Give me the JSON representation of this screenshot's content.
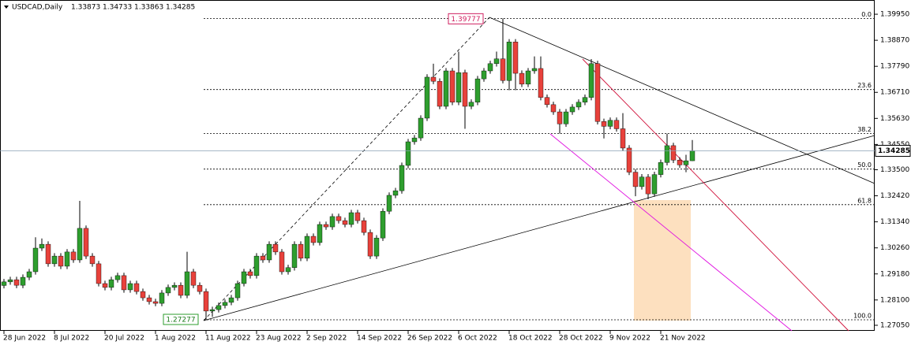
{
  "chart_data": {
    "type": "candlestick",
    "title": "USDCAD,Daily",
    "categories": [
      "28 Jun 2022",
      null,
      null,
      null,
      null,
      null,
      null,
      null,
      "8 Jul 2022",
      null,
      null,
      null,
      null,
      null,
      null,
      null,
      "20 Jul 2022",
      null,
      null,
      null,
      null,
      null,
      null,
      null,
      "1 Aug 2022",
      null,
      null,
      null,
      null,
      null,
      null,
      null,
      "11 Aug 2022",
      null,
      null,
      null,
      null,
      null,
      null,
      null,
      "23 Aug 2022",
      null,
      null,
      null,
      null,
      null,
      null,
      null,
      "2 Sep 2022",
      null,
      null,
      null,
      null,
      null,
      null,
      null,
      "14 Sep 2022",
      null,
      null,
      null,
      null,
      null,
      null,
      null,
      "26 Sep 2022",
      null,
      null,
      null,
      null,
      null,
      null,
      null,
      "6 Oct 2022",
      null,
      null,
      null,
      null,
      null,
      null,
      null,
      "18 Oct 2022",
      null,
      null,
      null,
      null,
      null,
      null,
      null,
      "28 Oct 2022",
      null,
      null,
      null,
      null,
      null,
      null,
      null,
      "9 Nov 2022",
      null,
      null,
      null,
      null,
      null,
      null,
      null,
      "21 Nov 2022",
      null,
      null,
      null,
      null,
      null
    ],
    "open": [
      1.287,
      1.2885,
      1.2894,
      1.2871,
      1.2904,
      1.2927,
      1.3025,
      1.3041,
      1.296,
      1.2992,
      1.295,
      1.3009,
      1.2976,
      1.3107,
      1.2992,
      1.296,
      1.2878,
      1.2862,
      1.2894,
      1.2911,
      1.2852,
      1.2878,
      1.2845,
      1.2819,
      1.2803,
      1.2796,
      1.2839,
      1.2862,
      1.2871,
      1.2829,
      1.2927,
      1.2871,
      1.2845,
      1.2764,
      1.277,
      1.2787,
      1.28,
      1.2819,
      1.2878,
      1.2927,
      1.2911,
      1.2992,
      1.2976,
      1.3041,
      1.3009,
      1.2927,
      1.2944,
      1.3041,
      1.2983,
      1.3074,
      1.3048,
      1.3123,
      1.3113,
      1.3156,
      1.3139,
      1.3123,
      1.3172,
      1.3139,
      1.309,
      1.2992,
      1.3067,
      1.3178,
      1.3244,
      1.3263,
      1.3368,
      1.3466,
      1.3482,
      1.3564,
      1.3734,
      1.3717,
      1.3613,
      1.376,
      1.363,
      1.3753,
      1.3613,
      1.363,
      1.3727,
      1.376,
      1.379,
      1.381,
      1.372,
      1.388,
      1.375,
      1.3705,
      1.376,
      1.377,
      1.365,
      1.362,
      1.359,
      1.354,
      1.359,
      1.361,
      1.363,
      1.365,
      1.379,
      1.355,
      1.353,
      1.3555,
      1.352,
      1.344,
      1.334,
      1.328,
      1.332,
      1.325,
      1.333,
      1.338,
      1.345,
      1.339,
      1.337,
      1.33873
    ],
    "high": [
      1.2897,
      1.2906,
      1.2906,
      1.2916,
      1.2939,
      1.307,
      1.3065,
      1.3053,
      1.3004,
      1.3004,
      1.3021,
      1.3021,
      1.3221,
      1.3119,
      1.3004,
      1.2972,
      1.289,
      1.2906,
      1.2923,
      1.2923,
      1.289,
      1.289,
      1.2857,
      1.2831,
      1.2815,
      1.2851,
      1.2874,
      1.2883,
      1.2883,
      1.301,
      1.2939,
      1.2883,
      1.2857,
      1.2782,
      1.2799,
      1.2812,
      1.2831,
      1.289,
      1.2939,
      1.2939,
      1.3004,
      1.3004,
      1.3053,
      1.3053,
      1.3021,
      1.2956,
      1.3053,
      1.3053,
      1.3086,
      1.3086,
      1.3135,
      1.3135,
      1.3168,
      1.3168,
      1.3151,
      1.3184,
      1.3184,
      1.3151,
      1.3102,
      1.3079,
      1.319,
      1.3256,
      1.3275,
      1.338,
      1.3478,
      1.3494,
      1.3576,
      1.3746,
      1.379,
      1.3729,
      1.3772,
      1.3772,
      1.384,
      1.3765,
      1.3642,
      1.3739,
      1.3772,
      1.3802,
      1.384,
      1.39777,
      1.3892,
      1.3892,
      1.3762,
      1.3772,
      1.382,
      1.382,
      1.3662,
      1.3632,
      1.3602,
      1.3602,
      1.3622,
      1.3642,
      1.3662,
      1.3809,
      1.3802,
      1.3562,
      1.3567,
      1.3567,
      1.3585,
      1.3452,
      1.3352,
      1.3332,
      1.3332,
      1.3342,
      1.3392,
      1.35,
      1.3462,
      1.3402,
      1.3412,
      1.34733
    ],
    "low": [
      1.2858,
      1.2873,
      1.2859,
      1.2859,
      1.2892,
      1.2915,
      1.3013,
      1.2948,
      1.2948,
      1.2938,
      1.2938,
      1.2964,
      1.2964,
      1.298,
      1.2948,
      1.2866,
      1.285,
      1.285,
      1.2882,
      1.284,
      1.284,
      1.2833,
      1.2807,
      1.2791,
      1.2784,
      1.2784,
      1.2827,
      1.285,
      1.2817,
      1.2817,
      1.2859,
      1.2833,
      1.27277,
      1.274,
      1.2758,
      1.2775,
      1.2788,
      1.2807,
      1.2866,
      1.2899,
      1.2899,
      1.2964,
      1.2964,
      1.2997,
      1.2915,
      1.2915,
      1.2932,
      1.2971,
      1.2971,
      1.3036,
      1.3036,
      1.3101,
      1.3101,
      1.3127,
      1.3111,
      1.3111,
      1.3127,
      1.3078,
      1.298,
      1.298,
      1.3055,
      1.3166,
      1.3232,
      1.3251,
      1.3356,
      1.3454,
      1.347,
      1.3552,
      1.3705,
      1.3601,
      1.3601,
      1.3618,
      1.3618,
      1.352,
      1.3601,
      1.3618,
      1.3715,
      1.3748,
      1.3778,
      1.3708,
      1.368,
      1.368,
      1.3693,
      1.3693,
      1.3748,
      1.3638,
      1.3608,
      1.3578,
      1.35,
      1.3528,
      1.3578,
      1.3598,
      1.3618,
      1.3638,
      1.3538,
      1.348,
      1.3518,
      1.3508,
      1.3428,
      1.3328,
      1.324,
      1.3268,
      1.3228,
      1.3238,
      1.3318,
      1.3368,
      1.3378,
      1.3358,
      1.334,
      1.33863
    ],
    "close": [
      1.2885,
      1.2894,
      1.2871,
      1.2904,
      1.2927,
      1.3025,
      1.3041,
      1.296,
      1.2992,
      1.295,
      1.3009,
      1.2976,
      1.3107,
      1.2992,
      1.296,
      1.2878,
      1.2862,
      1.2894,
      1.2911,
      1.2852,
      1.2878,
      1.2845,
      1.2819,
      1.2803,
      1.2796,
      1.2839,
      1.2862,
      1.2871,
      1.2829,
      1.2927,
      1.2871,
      1.2845,
      1.2764,
      1.277,
      1.2787,
      1.28,
      1.2819,
      1.2878,
      1.2927,
      1.2911,
      1.2992,
      1.2976,
      1.3041,
      1.3009,
      1.2927,
      1.2944,
      1.3041,
      1.2983,
      1.3074,
      1.3048,
      1.3123,
      1.3113,
      1.3156,
      1.3139,
      1.3123,
      1.3172,
      1.3139,
      1.309,
      1.2992,
      1.3067,
      1.3178,
      1.3244,
      1.3263,
      1.3368,
      1.3466,
      1.3482,
      1.3564,
      1.3734,
      1.3717,
      1.3613,
      1.376,
      1.363,
      1.3753,
      1.3613,
      1.363,
      1.3727,
      1.376,
      1.379,
      1.381,
      1.372,
      1.388,
      1.375,
      1.3705,
      1.376,
      1.377,
      1.365,
      1.362,
      1.359,
      1.354,
      1.359,
      1.361,
      1.363,
      1.365,
      1.379,
      1.355,
      1.353,
      1.3555,
      1.352,
      1.344,
      1.334,
      1.328,
      1.332,
      1.325,
      1.333,
      1.338,
      1.345,
      1.339,
      1.337,
      1.33873,
      1.34285
    ],
    "up_color": "#2e9e2e",
    "down_color": "#e8413b",
    "ylim": [
      1.2682,
      1.4054
    ],
    "yticks": [
      {
        "value": 1.3995,
        "label": "1.39950"
      },
      {
        "value": 1.3887,
        "label": "1.38870"
      },
      {
        "value": 1.3779,
        "label": "1.37790"
      },
      {
        "value": 1.3671,
        "label": "1.36710"
      },
      {
        "value": 1.3563,
        "label": "1.35630"
      },
      {
        "value": 1.3455,
        "label": "1.34550"
      },
      {
        "value": 1.335,
        "label": "1.33500"
      },
      {
        "value": 1.3242,
        "label": "1.32420"
      },
      {
        "value": 1.3134,
        "label": "1.31340"
      },
      {
        "value": 1.3026,
        "label": "1.30260"
      },
      {
        "value": 1.2918,
        "label": "1.29180"
      },
      {
        "value": 1.281,
        "label": "1.28100"
      },
      {
        "value": 1.2705,
        "label": "1.27050"
      }
    ],
    "swing_high": 1.39777,
    "swing_low": 1.27277,
    "fib_levels": [
      {
        "label": "0.0",
        "price": 1.39777
      },
      {
        "label": "23.6",
        "price": 1.36827
      },
      {
        "label": "38.2",
        "price": 1.35002
      },
      {
        "label": "50.0",
        "price": 1.33527
      },
      {
        "label": "61.8",
        "price": 1.32052
      },
      {
        "label": "100.0",
        "price": 1.27277
      }
    ]
  }
}
